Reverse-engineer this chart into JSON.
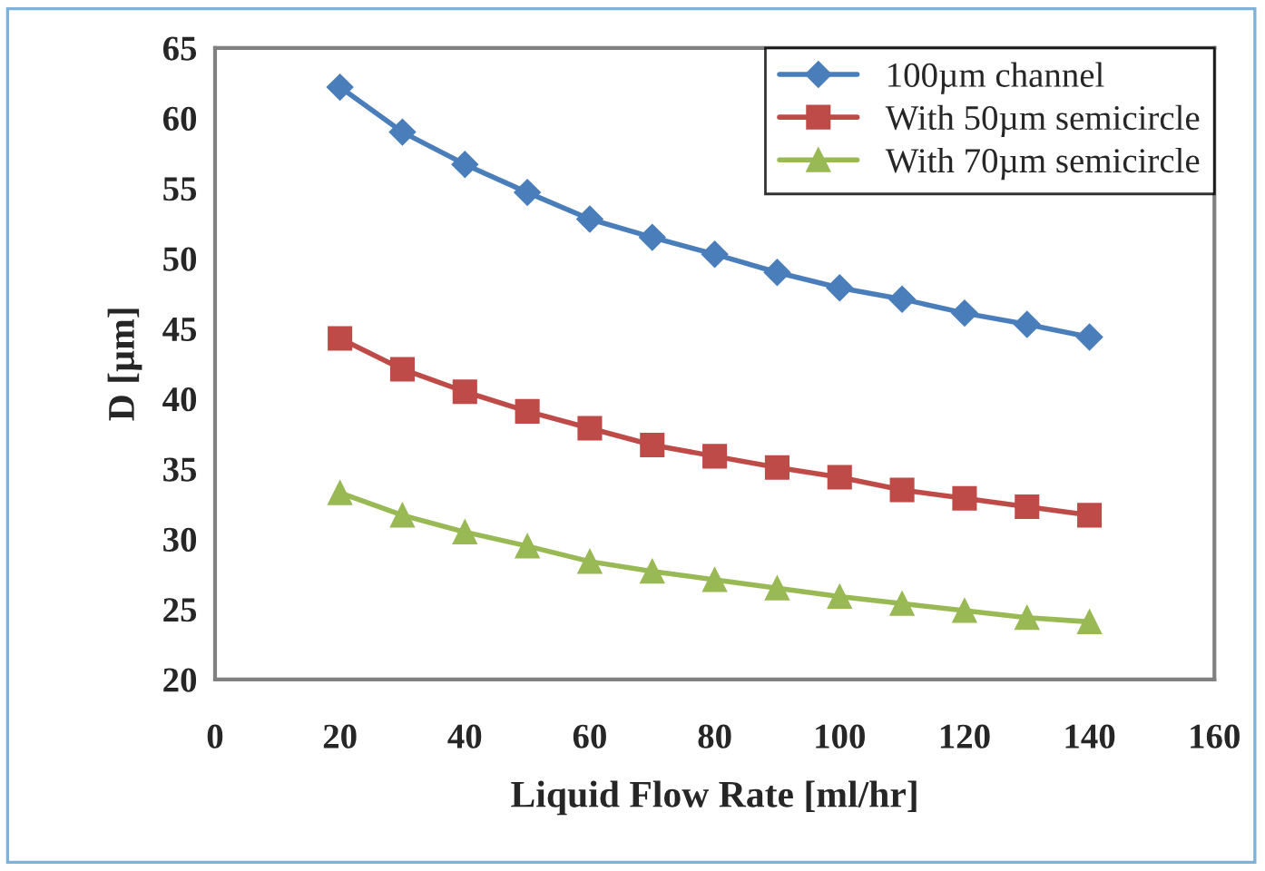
{
  "chart_data": {
    "type": "line",
    "xlabel": "Liquid Flow Rate [ml/hr]",
    "ylabel": "D [µm]",
    "x": [
      20,
      30,
      40,
      50,
      60,
      70,
      80,
      90,
      100,
      110,
      120,
      130,
      140
    ],
    "series": [
      {
        "name": "100µm channel",
        "color": "#4a7ebb",
        "marker": "diamond",
        "values": [
          62.2,
          59,
          56.7,
          54.7,
          52.8,
          51.5,
          50.3,
          49,
          47.9,
          47.1,
          46.1,
          45.3,
          44.4
        ]
      },
      {
        "name": "With 50µm semicircle",
        "color": "#be4b48",
        "marker": "square",
        "values": [
          44.3,
          42.1,
          40.5,
          39.1,
          37.9,
          36.7,
          35.9,
          35.1,
          34.4,
          33.5,
          32.9,
          32.3,
          31.7
        ]
      },
      {
        "name": "With 70µm semicircle",
        "color": "#98b954",
        "marker": "triangle",
        "values": [
          33.3,
          31.7,
          30.5,
          29.5,
          28.4,
          27.7,
          27.1,
          26.5,
          25.9,
          25.4,
          24.9,
          24.4,
          24.1
        ]
      }
    ],
    "xlim": [
      0,
      160
    ],
    "xticks": [
      0,
      20,
      40,
      60,
      80,
      100,
      120,
      140,
      160
    ],
    "ylim": [
      20,
      65
    ],
    "yticks": [
      20,
      25,
      30,
      35,
      40,
      45,
      50,
      55,
      60,
      65
    ],
    "grid": false,
    "legend": "top right",
    "line_style": "solid"
  }
}
